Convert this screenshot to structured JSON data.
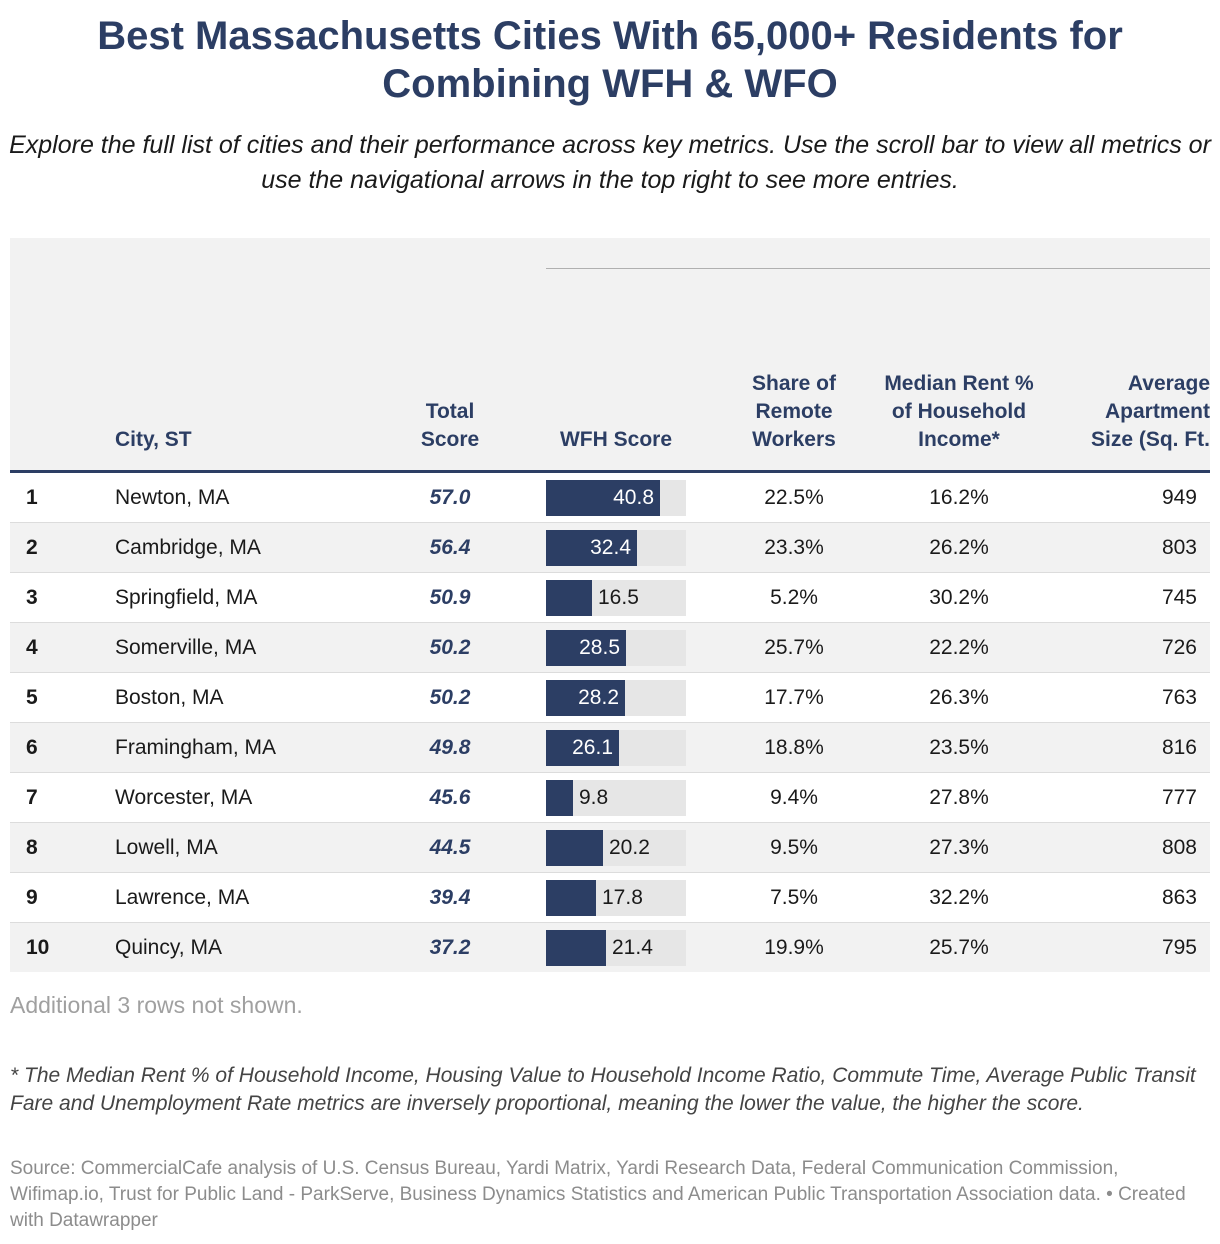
{
  "title": "Best Massachusetts Cities With 65,000+ Residents for Combining WFH & WFO",
  "subtitle": "Explore the full list of cities and their performance across key metrics. Use the scroll bar to view all metrics or use the navigational arrows in the top right to see more entries.",
  "colors": {
    "accent": "#2c3e64",
    "bar_track": "#e6e6e6",
    "stripe": "#f2f2f2"
  },
  "chart_data": {
    "type": "table",
    "columns": {
      "rank": "",
      "city": "City, ST",
      "total": "Total Score",
      "wfh": "WFH Score",
      "share": "Share of Remote Workers",
      "rent": "Median Rent % of Household Income*",
      "apt": "Average Apartment Size (Sq. Ft."
    },
    "wfh_max": 50,
    "rows": [
      {
        "rank": "1",
        "city": "Newton, MA",
        "total": "57.0",
        "wfh": 40.8,
        "wfh_label": "40.8",
        "share": "22.5%",
        "rent": "16.2%",
        "apt": "949"
      },
      {
        "rank": "2",
        "city": "Cambridge, MA",
        "total": "56.4",
        "wfh": 32.4,
        "wfh_label": "32.4",
        "share": "23.3%",
        "rent": "26.2%",
        "apt": "803"
      },
      {
        "rank": "3",
        "city": "Springfield, MA",
        "total": "50.9",
        "wfh": 16.5,
        "wfh_label": "16.5",
        "share": "5.2%",
        "rent": "30.2%",
        "apt": "745"
      },
      {
        "rank": "4",
        "city": "Somerville, MA",
        "total": "50.2",
        "wfh": 28.5,
        "wfh_label": "28.5",
        "share": "25.7%",
        "rent": "22.2%",
        "apt": "726"
      },
      {
        "rank": "5",
        "city": "Boston, MA",
        "total": "50.2",
        "wfh": 28.2,
        "wfh_label": "28.2",
        "share": "17.7%",
        "rent": "26.3%",
        "apt": "763"
      },
      {
        "rank": "6",
        "city": "Framingham, MA",
        "total": "49.8",
        "wfh": 26.1,
        "wfh_label": "26.1",
        "share": "18.8%",
        "rent": "23.5%",
        "apt": "816"
      },
      {
        "rank": "7",
        "city": "Worcester, MA",
        "total": "45.6",
        "wfh": 9.8,
        "wfh_label": "9.8",
        "share": "9.4%",
        "rent": "27.8%",
        "apt": "777"
      },
      {
        "rank": "8",
        "city": "Lowell, MA",
        "total": "44.5",
        "wfh": 20.2,
        "wfh_label": "20.2",
        "share": "9.5%",
        "rent": "27.3%",
        "apt": "808"
      },
      {
        "rank": "9",
        "city": "Lawrence, MA",
        "total": "39.4",
        "wfh": 17.8,
        "wfh_label": "17.8",
        "share": "7.5%",
        "rent": "32.2%",
        "apt": "863"
      },
      {
        "rank": "10",
        "city": "Quincy, MA",
        "total": "37.2",
        "wfh": 21.4,
        "wfh_label": "21.4",
        "share": "19.9%",
        "rent": "25.7%",
        "apt": "795"
      }
    ]
  },
  "more_rows_text": "Additional 3 rows not shown.",
  "footnote": "* The Median Rent % of Household Income, Housing Value to Household Income Ratio, Commute Time, Average Public Transit Fare and Unemployment Rate metrics are inversely proportional, meaning the lower the value, the higher the score.",
  "source": "Source: CommercialCafe analysis of U.S. Census Bureau, Yardi Matrix, Yardi Research Data, Federal Communication Commission, Wifimap.io, Trust for Public Land - ParkServe, Business Dynamics Statistics and American Public Transportation Association data. • Created with Datawrapper"
}
